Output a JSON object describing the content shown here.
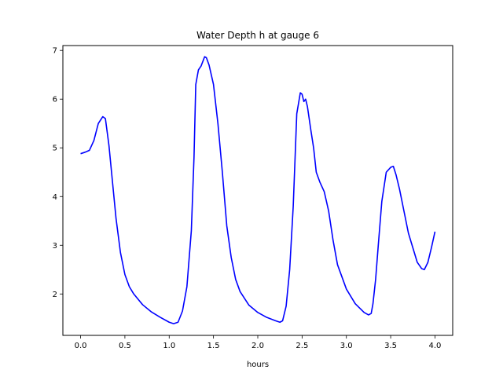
{
  "chart_data": {
    "type": "line",
    "title": "Water Depth h at gauge 6",
    "xlabel": "hours",
    "ylabel": "",
    "xlim": [
      -0.2,
      4.2
    ],
    "ylim": [
      1.15,
      7.1
    ],
    "xticks": [
      0.0,
      0.5,
      1.0,
      1.5,
      2.0,
      2.5,
      3.0,
      3.5,
      4.0
    ],
    "xtick_labels": [
      "0.0",
      "0.5",
      "1.0",
      "1.5",
      "2.0",
      "2.5",
      "3.0",
      "3.5",
      "4.0"
    ],
    "yticks": [
      2,
      3,
      4,
      5,
      6,
      7
    ],
    "ytick_labels": [
      "2",
      "3",
      "4",
      "5",
      "6",
      "7"
    ],
    "grid": false,
    "series": [
      {
        "color": "#0000ff",
        "x": [
          0.0,
          0.05,
          0.1,
          0.15,
          0.2,
          0.25,
          0.28,
          0.32,
          0.36,
          0.4,
          0.45,
          0.5,
          0.55,
          0.6,
          0.7,
          0.8,
          0.9,
          1.0,
          1.05,
          1.1,
          1.15,
          1.2,
          1.25,
          1.28,
          1.3,
          1.33,
          1.36,
          1.4,
          1.42,
          1.45,
          1.5,
          1.55,
          1.6,
          1.65,
          1.7,
          1.75,
          1.8,
          1.9,
          2.0,
          2.1,
          2.2,
          2.25,
          2.28,
          2.32,
          2.36,
          2.4,
          2.44,
          2.48,
          2.5,
          2.52,
          2.54,
          2.56,
          2.58,
          2.6,
          2.63,
          2.66,
          2.7,
          2.75,
          2.8,
          2.85,
          2.9,
          3.0,
          3.1,
          3.2,
          3.25,
          3.28,
          3.3,
          3.33,
          3.36,
          3.4,
          3.45,
          3.5,
          3.53,
          3.56,
          3.6,
          3.65,
          3.7,
          3.75,
          3.8,
          3.85,
          3.88,
          3.92,
          3.96,
          4.0
        ],
        "y": [
          4.88,
          4.91,
          4.95,
          5.15,
          5.5,
          5.64,
          5.6,
          5.05,
          4.3,
          3.55,
          2.85,
          2.4,
          2.15,
          2.0,
          1.78,
          1.63,
          1.52,
          1.42,
          1.39,
          1.42,
          1.65,
          2.15,
          3.3,
          4.8,
          6.3,
          6.6,
          6.68,
          6.87,
          6.85,
          6.7,
          6.3,
          5.5,
          4.5,
          3.4,
          2.75,
          2.3,
          2.05,
          1.77,
          1.62,
          1.52,
          1.45,
          1.42,
          1.45,
          1.75,
          2.5,
          3.8,
          5.7,
          6.13,
          6.1,
          5.95,
          6.0,
          5.85,
          5.6,
          5.35,
          5.0,
          4.5,
          4.3,
          4.1,
          3.7,
          3.1,
          2.6,
          2.1,
          1.8,
          1.62,
          1.57,
          1.6,
          1.8,
          2.3,
          3.0,
          3.9,
          4.5,
          4.6,
          4.62,
          4.45,
          4.15,
          3.7,
          3.25,
          2.95,
          2.65,
          2.52,
          2.5,
          2.65,
          2.95,
          3.28
        ]
      }
    ]
  }
}
